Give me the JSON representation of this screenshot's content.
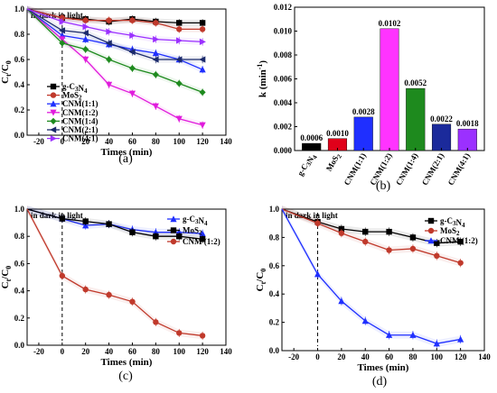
{
  "chart_data": [
    {
      "panel": "(a)",
      "type": "line",
      "xlabel": "Times (min)",
      "ylabel": "C",
      "ylabel_sub": "t",
      "ylabel_sep": "/C",
      "ylabel_sub2": "0",
      "xlim": [
        -30,
        140
      ],
      "ylim": [
        0.0,
        1.0
      ],
      "xticks": [
        "-20",
        "0",
        "20",
        "40",
        "60",
        "80",
        "100",
        "120",
        "140"
      ],
      "yticks": [
        "0.0",
        "0.2",
        "0.4",
        "0.6",
        "0.8",
        "1.0"
      ],
      "annotation": "in dark  in light",
      "x": [
        -30,
        0,
        20,
        40,
        60,
        80,
        100,
        120
      ],
      "legend_labels": [
        "g-C3N4",
        "MoS2",
        "CNM(1:1)",
        "CNM(1:2)",
        "CNM(1:4)",
        "CNM(2:1)",
        "CNM(4:1)"
      ],
      "series": [
        {
          "name": "g-C₃N₄",
          "color": "#000000",
          "marker": "square",
          "values": [
            1.0,
            0.93,
            0.92,
            0.9,
            0.92,
            0.9,
            0.89,
            0.89
          ]
        },
        {
          "name": "MoS₂",
          "color": "#c0392b",
          "marker": "circle",
          "values": [
            1.0,
            0.93,
            0.91,
            0.91,
            0.91,
            0.89,
            0.84,
            0.84
          ]
        },
        {
          "name": "CNM(1:1)",
          "color": "#1f2fff",
          "marker": "triangle-up",
          "values": [
            1.0,
            0.79,
            0.76,
            0.72,
            0.68,
            0.65,
            0.6,
            0.52
          ]
        },
        {
          "name": "CNM(1:2)",
          "color": "#e01cdc",
          "marker": "triangle-down",
          "values": [
            1.0,
            0.76,
            0.6,
            0.4,
            0.33,
            0.23,
            0.13,
            0.08
          ]
        },
        {
          "name": "CNM(1:4)",
          "color": "#1e8a1e",
          "marker": "diamond",
          "values": [
            1.0,
            0.73,
            0.68,
            0.6,
            0.53,
            0.48,
            0.41,
            0.34
          ]
        },
        {
          "name": "CNM(2:1)",
          "color": "#1b2a6b",
          "marker": "triangle-left",
          "values": [
            1.0,
            0.83,
            0.81,
            0.73,
            0.66,
            0.6,
            0.6,
            0.6
          ]
        },
        {
          "name": "CNM(4:1)",
          "color": "#9b30ff",
          "marker": "triangle-right",
          "values": [
            1.0,
            0.9,
            0.86,
            0.82,
            0.79,
            0.76,
            0.75,
            0.74
          ]
        }
      ]
    },
    {
      "panel": "(b)",
      "type": "bar",
      "ylabel": "k (min",
      "ylabel_sup": "-1",
      "ylabel_end": ")",
      "ylim": [
        0.0,
        0.012
      ],
      "yticks": [
        "0.000",
        "0.002",
        "0.004",
        "0.006",
        "0.008",
        "0.010",
        "0.012"
      ],
      "categories": [
        "g-C3N4",
        "MoS2",
        "CNM(1:1)",
        "CNM(1:2)",
        "CNM(1:4)",
        "CNM(2:1)",
        "CNM(4:1)"
      ],
      "values": [
        0.0006,
        0.001,
        0.0028,
        0.0102,
        0.0052,
        0.0022,
        0.0018
      ],
      "value_labels": [
        "0.0006",
        "0.0010",
        "0.0028",
        "0.0102",
        "0.0052",
        "0.0022",
        "0.0018"
      ],
      "colors": [
        "#000000",
        "#e0001a",
        "#1f2fff",
        "#ff33ff",
        "#1e8a1e",
        "#1b2a9b",
        "#9b30ff"
      ]
    },
    {
      "panel": "(c)",
      "type": "line",
      "xlabel": "Times (min)",
      "ylabel": "C",
      "ylabel_sub": "t",
      "ylabel_sep": "/C",
      "ylabel_sub2": "0",
      "xlim": [
        -30,
        140
      ],
      "ylim": [
        0.0,
        1.0
      ],
      "xticks": [
        "-20",
        "0",
        "20",
        "40",
        "60",
        "80",
        "100",
        "120",
        "140"
      ],
      "yticks": [
        "0.0",
        "0.2",
        "0.4",
        "0.6",
        "0.8",
        "1.0"
      ],
      "annotation": "in dark  in light",
      "x": [
        -30,
        0,
        20,
        40,
        60,
        80,
        100,
        120
      ],
      "legend_labels": [
        "g-C3N4",
        "MoS2",
        "CNM (1:2)"
      ],
      "series": [
        {
          "name": "g-C₃N₄",
          "color": "#1f2fff",
          "marker": "triangle-up",
          "values": [
            1.0,
            0.93,
            0.88,
            0.89,
            0.85,
            0.83,
            0.83,
            0.82
          ]
        },
        {
          "name": "MoS₂",
          "color": "#000000",
          "marker": "square",
          "values": [
            1.0,
            0.93,
            0.91,
            0.89,
            0.83,
            0.8,
            0.8,
            0.78
          ]
        },
        {
          "name": "CNM (1:2)",
          "color": "#c0392b",
          "marker": "circle",
          "values": [
            1.0,
            0.51,
            0.41,
            0.37,
            0.32,
            0.17,
            0.09,
            0.07
          ]
        }
      ]
    },
    {
      "panel": "(d)",
      "type": "line",
      "xlabel": "Times (min)",
      "ylabel": "C",
      "ylabel_sub": "t",
      "ylabel_sep": "/C",
      "ylabel_sub2": "0",
      "xlim": [
        -30,
        140
      ],
      "ylim": [
        0.0,
        1.0
      ],
      "xticks": [
        "-20",
        "0",
        "20",
        "40",
        "60",
        "80",
        "100",
        "120",
        "140"
      ],
      "yticks": [
        "0.0",
        "0.2",
        "0.4",
        "0.6",
        "0.8",
        "1.0"
      ],
      "annotation": "in dark  in light",
      "x": [
        -30,
        0,
        20,
        40,
        60,
        80,
        100,
        120
      ],
      "legend_labels": [
        "g-C3N4",
        "MoS2",
        "CNM (1:2)"
      ],
      "series": [
        {
          "name": "g-C₃N₄",
          "color": "#000000",
          "marker": "square",
          "values": [
            1.0,
            0.91,
            0.86,
            0.84,
            0.84,
            0.8,
            0.76,
            0.77
          ]
        },
        {
          "name": "MoS₂",
          "color": "#c0392b",
          "marker": "circle",
          "values": [
            1.0,
            0.9,
            0.83,
            0.77,
            0.71,
            0.72,
            0.67,
            0.62
          ]
        },
        {
          "name": "CNM (1:2)",
          "color": "#1f2fff",
          "marker": "triangle-up",
          "values": [
            1.0,
            0.54,
            0.35,
            0.21,
            0.11,
            0.11,
            0.05,
            0.08
          ]
        }
      ]
    }
  ]
}
